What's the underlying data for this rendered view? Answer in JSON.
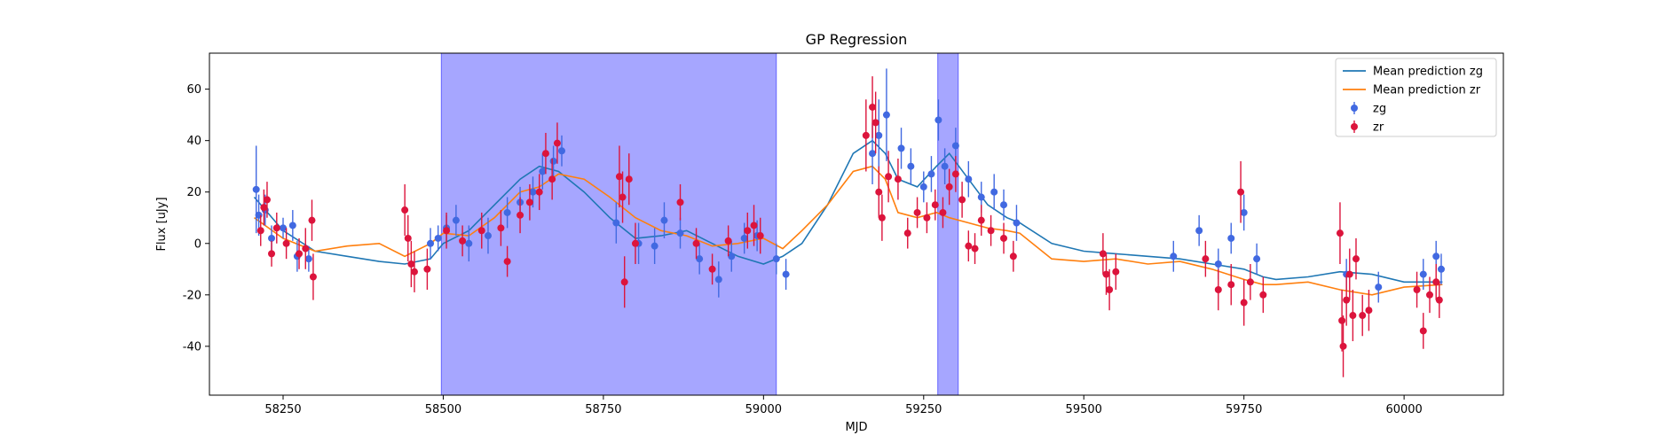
{
  "chart_data": {
    "type": "scatter",
    "title": "GP Regression",
    "xlabel": "MJD",
    "ylabel": "Flux [uJy]",
    "xlim": [
      58135,
      60155
    ],
    "ylim": [
      -59,
      74
    ],
    "xticks": [
      58250,
      58500,
      58750,
      59000,
      59250,
      59500,
      59750,
      60000
    ],
    "yticks": [
      -40,
      -20,
      0,
      20,
      40,
      60
    ],
    "grid": false,
    "legend_position": "top-right",
    "shaded_regions": [
      {
        "x_start": 58497,
        "x_end": 59020,
        "color": "#0000ff",
        "alpha": 0.35
      },
      {
        "x_start": 59272,
        "x_end": 59304,
        "color": "#0000ff",
        "alpha": 0.35
      }
    ],
    "series": [
      {
        "name": "Mean prediction zg",
        "kind": "line",
        "color": "#1f77b4",
        "x": [
          58205,
          58250,
          58300,
          58350,
          58400,
          58440,
          58480,
          58500,
          58540,
          58580,
          58620,
          58650,
          58680,
          58720,
          58760,
          58800,
          58840,
          58880,
          58920,
          58960,
          59000,
          59030,
          59060,
          59100,
          59140,
          59170,
          59190,
          59210,
          59240,
          59270,
          59290,
          59320,
          59350,
          59380,
          59400,
          59450,
          59500,
          59550,
          59600,
          59650,
          59700,
          59750,
          59780,
          59800,
          59850,
          59900,
          59950,
          60000,
          60060
        ],
        "y": [
          18,
          5,
          -3,
          -5,
          -7,
          -8,
          -6,
          0,
          5,
          15,
          25,
          30,
          28,
          20,
          10,
          2,
          3,
          5,
          0,
          -5,
          -8,
          -5,
          0,
          15,
          35,
          40,
          35,
          25,
          22,
          30,
          35,
          25,
          15,
          10,
          8,
          0,
          -3,
          -4,
          -5,
          -6,
          -8,
          -10,
          -13,
          -14,
          -13,
          -11,
          -12,
          -15,
          -15
        ]
      },
      {
        "name": "Mean prediction zr",
        "kind": "line",
        "color": "#ff7f0e",
        "x": [
          58205,
          58250,
          58300,
          58350,
          58400,
          58440,
          58480,
          58500,
          58540,
          58580,
          58620,
          58650,
          58680,
          58720,
          58760,
          58800,
          58840,
          58880,
          58920,
          58960,
          59000,
          59030,
          59060,
          59100,
          59140,
          59170,
          59190,
          59210,
          59240,
          59270,
          59290,
          59320,
          59350,
          59380,
          59400,
          59450,
          59500,
          59550,
          59600,
          59650,
          59700,
          59750,
          59780,
          59800,
          59850,
          59900,
          59950,
          60000,
          60060
        ],
        "y": [
          10,
          2,
          -3,
          -1,
          0,
          -5,
          0,
          4,
          3,
          10,
          20,
          22,
          27,
          25,
          18,
          10,
          5,
          3,
          -1,
          0,
          2,
          -2,
          5,
          15,
          28,
          30,
          25,
          12,
          10,
          12,
          10,
          8,
          6,
          5,
          4,
          -6,
          -7,
          -6,
          -8,
          -7,
          -10,
          -14,
          -16,
          -16,
          -15,
          -18,
          -20,
          -17,
          -16
        ]
      },
      {
        "name": "zg",
        "kind": "errorbar",
        "color": "#4169e1",
        "points": [
          [
            58208,
            21,
            17
          ],
          [
            58212,
            11,
            8
          ],
          [
            58222,
            13,
            6
          ],
          [
            58232,
            2,
            5
          ],
          [
            58250,
            6,
            4
          ],
          [
            58265,
            7,
            6
          ],
          [
            58272,
            -5,
            6
          ],
          [
            58290,
            -6,
            5
          ],
          [
            58480,
            0,
            6
          ],
          [
            58492,
            2,
            5
          ],
          [
            58505,
            6,
            5
          ],
          [
            58520,
            9,
            6
          ],
          [
            58540,
            0,
            7
          ],
          [
            58570,
            3,
            7
          ],
          [
            58600,
            12,
            6
          ],
          [
            58620,
            16,
            6
          ],
          [
            58640,
            20,
            6
          ],
          [
            58655,
            28,
            7
          ],
          [
            58672,
            32,
            6
          ],
          [
            58685,
            36,
            6
          ],
          [
            58770,
            8,
            8
          ],
          [
            58805,
            0,
            8
          ],
          [
            58830,
            -1,
            7
          ],
          [
            58845,
            9,
            7
          ],
          [
            58870,
            4,
            6
          ],
          [
            58900,
            -6,
            6
          ],
          [
            58930,
            -14,
            7
          ],
          [
            58950,
            -5,
            6
          ],
          [
            58970,
            2,
            6
          ],
          [
            58990,
            3,
            6
          ],
          [
            59020,
            -6,
            6
          ],
          [
            59035,
            -12,
            6
          ],
          [
            59170,
            35,
            12
          ],
          [
            59180,
            42,
            14
          ],
          [
            59192,
            50,
            18
          ],
          [
            59215,
            37,
            8
          ],
          [
            59230,
            30,
            7
          ],
          [
            59250,
            22,
            6
          ],
          [
            59262,
            27,
            7
          ],
          [
            59273,
            48,
            8
          ],
          [
            59283,
            30,
            7
          ],
          [
            59300,
            38,
            7
          ],
          [
            59320,
            25,
            7
          ],
          [
            59340,
            18,
            6
          ],
          [
            59360,
            20,
            7
          ],
          [
            59375,
            15,
            6
          ],
          [
            59395,
            8,
            7
          ],
          [
            59640,
            -5,
            6
          ],
          [
            59680,
            5,
            6
          ],
          [
            59710,
            -8,
            6
          ],
          [
            59730,
            2,
            6
          ],
          [
            59750,
            12,
            7
          ],
          [
            59770,
            -6,
            6
          ],
          [
            59910,
            -12,
            6
          ],
          [
            59960,
            -17,
            6
          ],
          [
            60030,
            -12,
            6
          ],
          [
            60050,
            -5,
            6
          ],
          [
            60058,
            -10,
            6
          ]
        ]
      },
      {
        "name": "zr",
        "kind": "errorbar",
        "color": "#dc143c",
        "points": [
          [
            58215,
            5,
            6
          ],
          [
            58220,
            14,
            7
          ],
          [
            58225,
            17,
            7
          ],
          [
            58232,
            -4,
            5
          ],
          [
            58240,
            6,
            6
          ],
          [
            58255,
            0,
            6
          ],
          [
            58275,
            -4,
            6
          ],
          [
            58285,
            -2,
            8
          ],
          [
            58295,
            9,
            8
          ],
          [
            58297,
            -13,
            9
          ],
          [
            58440,
            13,
            10
          ],
          [
            58445,
            2,
            9
          ],
          [
            58450,
            -8,
            9
          ],
          [
            58455,
            -11,
            8
          ],
          [
            58475,
            -10,
            8
          ],
          [
            58505,
            5,
            7
          ],
          [
            58530,
            1,
            6
          ],
          [
            58560,
            5,
            7
          ],
          [
            58590,
            6,
            7
          ],
          [
            58600,
            -7,
            6
          ],
          [
            58620,
            11,
            7
          ],
          [
            58635,
            16,
            7
          ],
          [
            58650,
            20,
            7
          ],
          [
            58660,
            35,
            8
          ],
          [
            58670,
            25,
            8
          ],
          [
            58678,
            39,
            8
          ],
          [
            58775,
            26,
            12
          ],
          [
            58780,
            18,
            10
          ],
          [
            58783,
            -15,
            10
          ],
          [
            58790,
            25,
            10
          ],
          [
            58800,
            0,
            8
          ],
          [
            58870,
            16,
            7
          ],
          [
            58895,
            0,
            6
          ],
          [
            58920,
            -10,
            6
          ],
          [
            58945,
            1,
            6
          ],
          [
            58975,
            5,
            7
          ],
          [
            58985,
            7,
            8
          ],
          [
            58995,
            3,
            7
          ],
          [
            59160,
            42,
            14
          ],
          [
            59170,
            53,
            12
          ],
          [
            59175,
            47,
            12
          ],
          [
            59180,
            20,
            10
          ],
          [
            59185,
            10,
            9
          ],
          [
            59195,
            26,
            10
          ],
          [
            59210,
            25,
            8
          ],
          [
            59225,
            4,
            6
          ],
          [
            59240,
            12,
            6
          ],
          [
            59255,
            10,
            6
          ],
          [
            59268,
            15,
            6
          ],
          [
            59280,
            12,
            6
          ],
          [
            59290,
            22,
            7
          ],
          [
            59300,
            27,
            7
          ],
          [
            59310,
            17,
            7
          ],
          [
            59320,
            -1,
            6
          ],
          [
            59330,
            -2,
            6
          ],
          [
            59340,
            9,
            6
          ],
          [
            59355,
            5,
            6
          ],
          [
            59375,
            2,
            6
          ],
          [
            59390,
            -5,
            6
          ],
          [
            59530,
            -4,
            8
          ],
          [
            59535,
            -12,
            8
          ],
          [
            59540,
            -18,
            8
          ],
          [
            59550,
            -11,
            7
          ],
          [
            59690,
            -6,
            7
          ],
          [
            59710,
            -18,
            8
          ],
          [
            59730,
            -16,
            8
          ],
          [
            59745,
            20,
            12
          ],
          [
            59750,
            -23,
            9
          ],
          [
            59760,
            -15,
            7
          ],
          [
            59780,
            -20,
            7
          ],
          [
            59900,
            4,
            12
          ],
          [
            59903,
            -30,
            12
          ],
          [
            59905,
            -40,
            12
          ],
          [
            59910,
            -22,
            10
          ],
          [
            59915,
            -12,
            10
          ],
          [
            59920,
            -28,
            10
          ],
          [
            59925,
            -6,
            8
          ],
          [
            59935,
            -28,
            8
          ],
          [
            59945,
            -26,
            8
          ],
          [
            60020,
            -18,
            7
          ],
          [
            60030,
            -34,
            7
          ],
          [
            60040,
            -20,
            7
          ],
          [
            60050,
            -15,
            7
          ],
          [
            60055,
            -22,
            7
          ]
        ]
      }
    ]
  }
}
